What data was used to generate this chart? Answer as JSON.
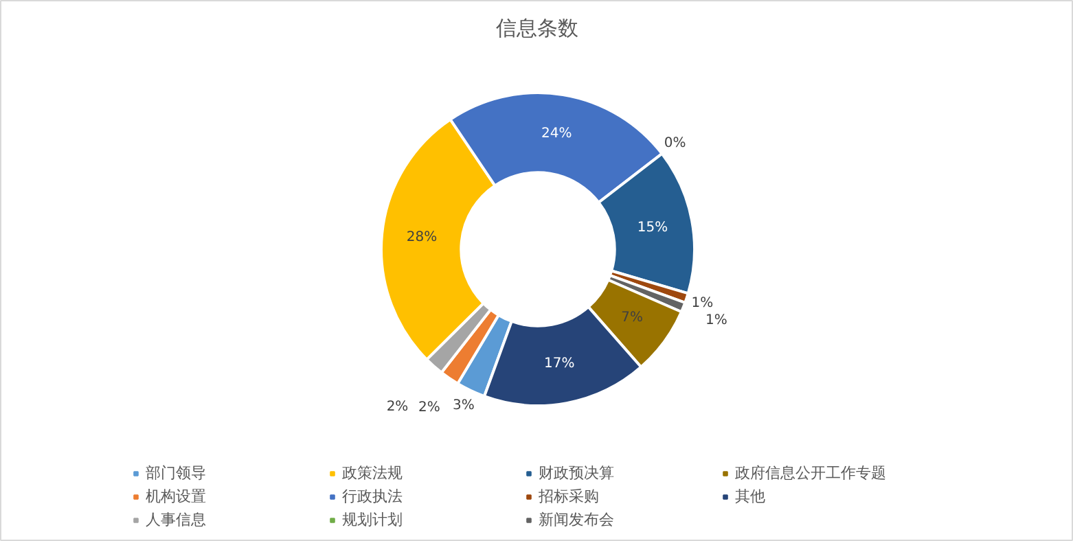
{
  "chart_data": {
    "type": "donut",
    "title": "信息条数",
    "categories": [
      "部门领导",
      "机构设置",
      "人事信息",
      "政策法规",
      "行政执法",
      "规划计划",
      "财政预决算",
      "招标采购",
      "新闻发布会",
      "政府信息公开工作专题",
      "其他"
    ],
    "values": [
      3,
      2,
      2,
      28,
      24,
      0,
      15,
      1,
      1,
      7,
      17
    ],
    "value_labels": [
      "3%",
      "2%",
      "2%",
      "28%",
      "24%",
      "0%",
      "15%",
      "1%",
      "1%",
      "7%",
      "17%"
    ],
    "colors": [
      "#5b9bd5",
      "#ed7d31",
      "#a5a5a5",
      "#ffc000",
      "#4472c4",
      "#70ad47",
      "#255e91",
      "#9e480e",
      "#636363",
      "#997300",
      "#264478"
    ],
    "legend": "bottom"
  }
}
